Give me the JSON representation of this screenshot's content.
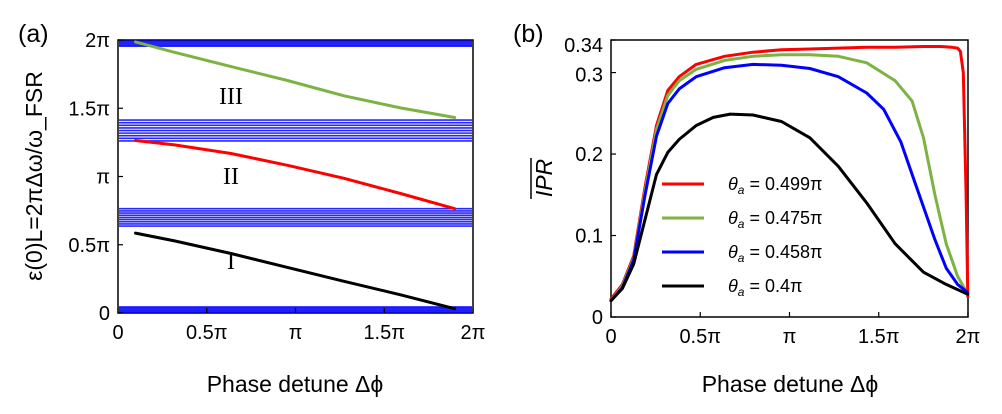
{
  "chart_data": [
    {
      "type": "line",
      "panel_label": "(a)",
      "xlabel": "Phase detune Δϕ",
      "ylabel": "ε(0)L=2πΔω/ω_FSR",
      "xlim": [
        0,
        6.2832
      ],
      "ylim": [
        0,
        6.2832
      ],
      "xticks": [
        {
          "value": 0,
          "label": "0"
        },
        {
          "value": 1.5708,
          "label": "0.5π"
        },
        {
          "value": 3.1416,
          "label": "π"
        },
        {
          "value": 4.7124,
          "label": "1.5π"
        },
        {
          "value": 6.2832,
          "label": "2π"
        }
      ],
      "yticks": [
        {
          "value": 0,
          "label": "0"
        },
        {
          "value": 1.5708,
          "label": "0.5π"
        },
        {
          "value": 3.1416,
          "label": "π"
        },
        {
          "value": 4.7124,
          "label": "1.5π"
        },
        {
          "value": 6.2832,
          "label": "2π"
        }
      ],
      "regions": [
        {
          "label": "III",
          "x": 2.0,
          "y": 5.0
        },
        {
          "label": "II",
          "x": 2.0,
          "y": 3.15
        },
        {
          "label": "I",
          "x": 2.0,
          "y": 1.2
        }
      ],
      "band_lines": {
        "color": "#0000ff",
        "groups": [
          [
            0.02,
            0.05,
            0.08,
            0.11,
            0.14
          ],
          [
            2.0,
            2.05,
            2.1,
            2.15,
            2.2,
            2.25,
            2.3,
            2.35,
            2.4
          ],
          [
            3.96,
            4.02,
            4.08,
            4.14,
            4.2,
            4.26,
            4.32,
            4.38,
            4.44
          ],
          [
            6.14,
            6.17,
            6.2,
            6.23,
            6.26
          ]
        ]
      },
      "series": [
        {
          "name": "III",
          "color": "#7cb342",
          "x": [
            0.31,
            1.0,
            2.0,
            3.0,
            4.0,
            5.0,
            5.96
          ],
          "y": [
            6.24,
            6.0,
            5.67,
            5.35,
            5.0,
            4.72,
            4.5
          ]
        },
        {
          "name": "II",
          "color": "#ff0000",
          "x": [
            0.31,
            1.0,
            2.0,
            3.0,
            4.0,
            5.0,
            5.96
          ],
          "y": [
            3.97,
            3.87,
            3.67,
            3.4,
            3.1,
            2.75,
            2.4
          ]
        },
        {
          "name": "I",
          "color": "#000000",
          "x": [
            0.31,
            1.0,
            2.0,
            3.0,
            4.0,
            5.0,
            5.96
          ],
          "y": [
            1.84,
            1.66,
            1.37,
            1.05,
            0.73,
            0.42,
            0.1
          ]
        }
      ]
    },
    {
      "type": "line",
      "panel_label": "(b)",
      "xlabel": "Phase detune Δϕ",
      "ylabel": "IPR",
      "xlim": [
        0,
        6.2832
      ],
      "ylim": [
        0,
        0.34
      ],
      "xticks": [
        {
          "value": 0,
          "label": "0"
        },
        {
          "value": 1.5708,
          "label": "0.5π"
        },
        {
          "value": 3.1416,
          "label": "π"
        },
        {
          "value": 4.7124,
          "label": "1.5π"
        },
        {
          "value": 6.2832,
          "label": "2π"
        }
      ],
      "yticks": [
        {
          "value": 0,
          "label": "0"
        },
        {
          "value": 0.1,
          "label": "0.1"
        },
        {
          "value": 0.2,
          "label": "0.2"
        },
        {
          "value": 0.3,
          "label": "0.3"
        },
        {
          "value": 0.34,
          "label": "0.34"
        }
      ],
      "legend_position": "center-left",
      "series": [
        {
          "name": "θa = 0.499π",
          "symbol": "θ",
          "subscript": "a",
          "value_text": " = 0.499π",
          "color": "#ff0000",
          "x": [
            0,
            0.2,
            0.4,
            0.6,
            0.8,
            1.0,
            1.2,
            1.5,
            2.0,
            2.5,
            3.0,
            3.5,
            4.0,
            4.5,
            5.0,
            5.5,
            5.8,
            6.0,
            6.1,
            6.15,
            6.2,
            6.25,
            6.28
          ],
          "y": [
            0.022,
            0.04,
            0.075,
            0.16,
            0.235,
            0.278,
            0.295,
            0.31,
            0.32,
            0.325,
            0.328,
            0.329,
            0.33,
            0.331,
            0.331,
            0.332,
            0.332,
            0.331,
            0.33,
            0.326,
            0.3,
            0.15,
            0.025
          ]
        },
        {
          "name": "θa = 0.475π",
          "symbol": "θ",
          "subscript": "a",
          "value_text": " = 0.475π",
          "color": "#7cb342",
          "x": [
            0,
            0.2,
            0.4,
            0.6,
            0.8,
            1.0,
            1.2,
            1.5,
            2.0,
            2.5,
            3.0,
            3.5,
            4.0,
            4.5,
            5.0,
            5.3,
            5.5,
            5.7,
            5.9,
            6.1,
            6.28
          ],
          "y": [
            0.02,
            0.038,
            0.072,
            0.155,
            0.23,
            0.272,
            0.29,
            0.304,
            0.315,
            0.32,
            0.322,
            0.322,
            0.32,
            0.312,
            0.29,
            0.265,
            0.22,
            0.15,
            0.09,
            0.05,
            0.028
          ]
        },
        {
          "name": "θa = 0.458π",
          "symbol": "θ",
          "subscript": "a",
          "value_text": " = 0.458π",
          "color": "#0000ff",
          "x": [
            0,
            0.2,
            0.4,
            0.6,
            0.8,
            1.0,
            1.2,
            1.5,
            2.0,
            2.5,
            3.0,
            3.5,
            4.0,
            4.5,
            4.8,
            5.1,
            5.3,
            5.5,
            5.7,
            5.9,
            6.1,
            6.28
          ],
          "y": [
            0.02,
            0.036,
            0.07,
            0.15,
            0.222,
            0.262,
            0.28,
            0.295,
            0.306,
            0.31,
            0.309,
            0.305,
            0.295,
            0.275,
            0.255,
            0.215,
            0.175,
            0.135,
            0.095,
            0.06,
            0.04,
            0.03
          ]
        },
        {
          "name": "θa = 0.4π",
          "symbol": "θ",
          "subscript": "a",
          "value_text": " = 0.4π",
          "color": "#000000",
          "x": [
            0,
            0.2,
            0.4,
            0.6,
            0.8,
            1.0,
            1.2,
            1.5,
            1.8,
            2.1,
            2.5,
            3.0,
            3.5,
            4.0,
            4.5,
            5.0,
            5.5,
            5.9,
            6.28
          ],
          "y": [
            0.02,
            0.035,
            0.065,
            0.12,
            0.175,
            0.202,
            0.218,
            0.235,
            0.245,
            0.249,
            0.248,
            0.24,
            0.22,
            0.185,
            0.14,
            0.09,
            0.055,
            0.04,
            0.028
          ]
        }
      ]
    }
  ]
}
